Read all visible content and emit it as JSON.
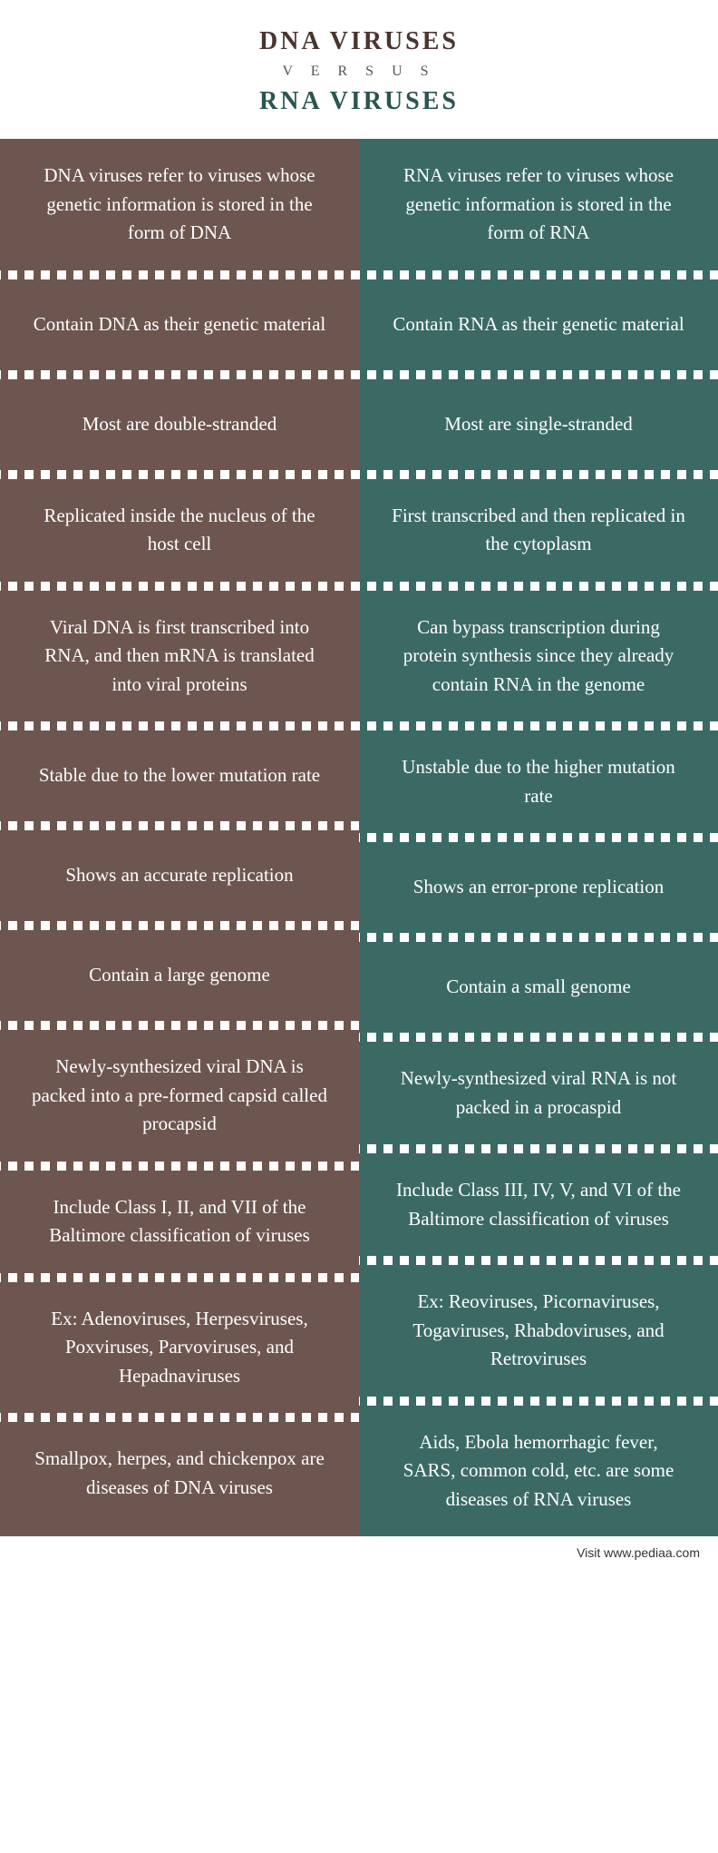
{
  "header": {
    "title_left": "DNA VIRUSES",
    "versus": "V E R S U S",
    "title_right": "RNA VIRUSES"
  },
  "colors": {
    "left_bg": "#6d5650",
    "left_title": "#4a3430",
    "right_bg": "#3b6a65",
    "right_title": "#2a5550",
    "text": "#ffffff",
    "separator_dot": "#ffffff"
  },
  "rows": [
    {
      "left": "DNA viruses refer to viruses whose genetic information is stored in the form of DNA",
      "right": "RNA viruses refer to viruses whose genetic information is stored in the form of RNA"
    },
    {
      "left": "Contain DNA as their genetic material",
      "right": "Contain RNA as their genetic material"
    },
    {
      "left": "Most are double-stranded",
      "right": "Most are single-stranded"
    },
    {
      "left": "Replicated inside the nucleus of the host cell",
      "right": "First transcribed and then replicated in the cytoplasm"
    },
    {
      "left": "Viral DNA is first transcribed into RNA, and then mRNA is translated into viral proteins",
      "right": "Can bypass transcription during protein synthesis since they already contain RNA in the genome"
    },
    {
      "left": "Stable due to the lower mutation rate",
      "right": "Unstable due to the higher mutation rate"
    },
    {
      "left": "Shows an accurate replication",
      "right": "Shows an error-prone replication"
    },
    {
      "left": "Contain a large genome",
      "right": "Contain a small genome"
    },
    {
      "left": "Newly-synthesized viral DNA is packed into a pre-formed capsid called procapsid",
      "right": "Newly-synthesized viral RNA is not packed in a procaspid"
    },
    {
      "left": "Include Class I, II, and VII of the Baltimore classification of viruses",
      "right": "Include Class III, IV, V, and VI of the Baltimore classification of viruses"
    },
    {
      "left": "Ex: Adenoviruses, Herpesviruses, Poxviruses, Parvoviruses, and Hepadnaviruses",
      "right": "Ex: Reoviruses, Picornaviruses, Togaviruses, Rhabdoviruses,  and Retroviruses"
    },
    {
      "left": "Smallpox, herpes, and chickenpox are diseases of DNA viruses",
      "right": "Aids, Ebola hemorrhagic fever, SARS, common cold, etc. are some diseases of RNA viruses"
    }
  ],
  "footer": {
    "text": "Visit www.pediaa.com"
  }
}
